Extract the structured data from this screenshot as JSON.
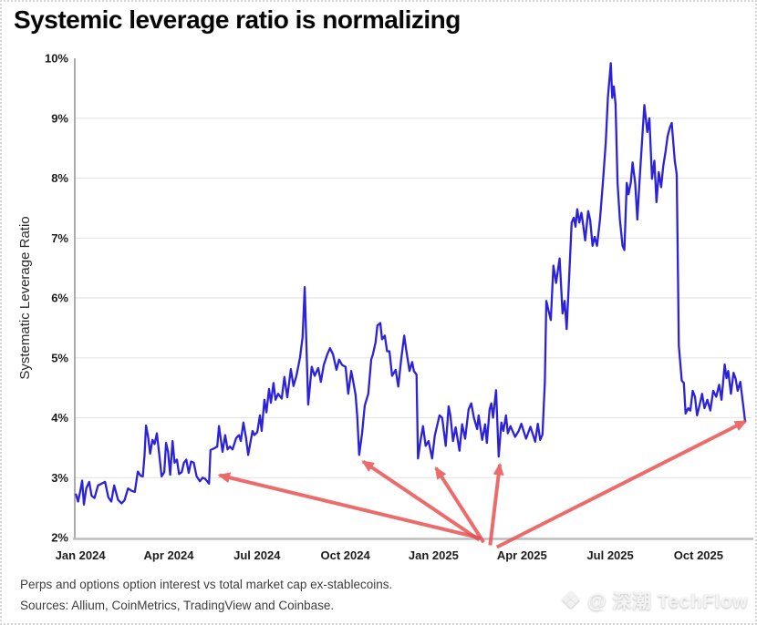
{
  "watermark": {
    "icon": "❖",
    "text": "@ 深潮 TechFlow"
  },
  "colors": {
    "line": "#2b22d9",
    "arrow": "#e84d4d",
    "grid": "#e4e4e4",
    "axis_left": "#8f8f8f",
    "axis_bottom": "#bdbdbd",
    "tick_text": "#1c1c1c",
    "title_text": "#060606"
  },
  "chart_data": {
    "type": "line",
    "title": "Systemic leverage ratio is normalizing",
    "ylabel": "Systematic Leverage Ratio",
    "xlabel": "",
    "caption": "Perps and options option interest vs total market cap ex-stablecoins.",
    "sources": "Sources: Allium, CoinMetrics, TradingView and Coinbase.",
    "grid": "horizontal",
    "legend": "none",
    "x_unit": "months since Jan 2024",
    "xlim": [
      -0.19,
      22.8
    ],
    "ylim": [
      2,
      10
    ],
    "y_ticks": [
      {
        "value": 10,
        "label": "10%"
      },
      {
        "value": 9,
        "label": "9%"
      },
      {
        "value": 8,
        "label": "8%"
      },
      {
        "value": 7,
        "label": "7%"
      },
      {
        "value": 6,
        "label": "6%"
      },
      {
        "value": 5,
        "label": "5%"
      },
      {
        "value": 4,
        "label": "4%"
      },
      {
        "value": 3,
        "label": "3%"
      },
      {
        "value": 2,
        "label": "2%"
      }
    ],
    "x_ticks": [
      {
        "t": 0,
        "label": "Jan 2024"
      },
      {
        "t": 3,
        "label": "Apr 2024"
      },
      {
        "t": 6,
        "label": "Jul 2024"
      },
      {
        "t": 9,
        "label": "Oct 2024"
      },
      {
        "t": 12,
        "label": "Jan 2025"
      },
      {
        "t": 15,
        "label": "Apr 2025"
      },
      {
        "t": 18,
        "label": "Jul 2025"
      },
      {
        "t": 21,
        "label": "Oct 2025"
      }
    ],
    "series": [
      {
        "name": "Systematic Leverage Ratio",
        "points": [
          [
            -0.15,
            2.72
          ],
          [
            -0.08,
            2.6
          ],
          [
            0.0,
            2.78
          ],
          [
            0.06,
            2.95
          ],
          [
            0.12,
            2.55
          ],
          [
            0.2,
            2.82
          ],
          [
            0.3,
            2.93
          ],
          [
            0.38,
            2.7
          ],
          [
            0.48,
            2.66
          ],
          [
            0.6,
            2.87
          ],
          [
            0.72,
            2.9
          ],
          [
            0.84,
            2.93
          ],
          [
            0.95,
            2.67
          ],
          [
            1.05,
            2.6
          ],
          [
            1.15,
            2.87
          ],
          [
            1.28,
            2.63
          ],
          [
            1.4,
            2.57
          ],
          [
            1.5,
            2.62
          ],
          [
            1.62,
            2.82
          ],
          [
            1.74,
            2.78
          ],
          [
            1.85,
            2.76
          ],
          [
            1.95,
            3.1
          ],
          [
            2.05,
            3.03
          ],
          [
            2.12,
            3.02
          ],
          [
            2.18,
            3.38
          ],
          [
            2.23,
            3.87
          ],
          [
            2.3,
            3.68
          ],
          [
            2.37,
            3.4
          ],
          [
            2.45,
            3.63
          ],
          [
            2.52,
            3.56
          ],
          [
            2.6,
            3.74
          ],
          [
            2.67,
            3.43
          ],
          [
            2.76,
            3.02
          ],
          [
            2.85,
            3.09
          ],
          [
            2.91,
            3.58
          ],
          [
            2.98,
            3.43
          ],
          [
            3.05,
            3.05
          ],
          [
            3.13,
            3.61
          ],
          [
            3.2,
            3.25
          ],
          [
            3.28,
            3.3
          ],
          [
            3.35,
            3.06
          ],
          [
            3.44,
            3.09
          ],
          [
            3.52,
            3.25
          ],
          [
            3.6,
            3.3
          ],
          [
            3.68,
            3.08
          ],
          [
            3.76,
            3.27
          ],
          [
            3.85,
            3.25
          ],
          [
            3.95,
            3.02
          ],
          [
            4.06,
            2.94
          ],
          [
            4.15,
            3.0
          ],
          [
            4.24,
            2.98
          ],
          [
            4.37,
            2.9
          ],
          [
            4.42,
            3.46
          ],
          [
            4.55,
            3.49
          ],
          [
            4.65,
            3.52
          ],
          [
            4.71,
            3.86
          ],
          [
            4.83,
            3.43
          ],
          [
            4.92,
            3.71
          ],
          [
            5.0,
            3.47
          ],
          [
            5.08,
            3.52
          ],
          [
            5.17,
            3.47
          ],
          [
            5.29,
            3.66
          ],
          [
            5.39,
            3.71
          ],
          [
            5.45,
            3.61
          ],
          [
            5.54,
            3.92
          ],
          [
            5.63,
            3.66
          ],
          [
            5.7,
            3.38
          ],
          [
            5.78,
            3.6
          ],
          [
            5.85,
            3.78
          ],
          [
            5.91,
            3.71
          ],
          [
            6.01,
            3.76
          ],
          [
            6.1,
            4.04
          ],
          [
            6.16,
            3.78
          ],
          [
            6.25,
            4.3
          ],
          [
            6.32,
            4.09
          ],
          [
            6.41,
            4.48
          ],
          [
            6.47,
            4.25
          ],
          [
            6.56,
            4.58
          ],
          [
            6.63,
            4.3
          ],
          [
            6.72,
            4.4
          ],
          [
            6.84,
            4.32
          ],
          [
            6.93,
            4.68
          ],
          [
            7.03,
            4.34
          ],
          [
            7.15,
            4.81
          ],
          [
            7.24,
            4.53
          ],
          [
            7.34,
            4.7
          ],
          [
            7.46,
            5.0
          ],
          [
            7.55,
            5.35
          ],
          [
            7.62,
            6.18
          ],
          [
            7.68,
            5.2
          ],
          [
            7.74,
            4.22
          ],
          [
            7.86,
            4.85
          ],
          [
            7.96,
            4.7
          ],
          [
            8.08,
            4.83
          ],
          [
            8.17,
            4.6
          ],
          [
            8.27,
            4.88
          ],
          [
            8.39,
            5.06
          ],
          [
            8.48,
            5.16
          ],
          [
            8.58,
            5.06
          ],
          [
            8.7,
            4.8
          ],
          [
            8.79,
            4.97
          ],
          [
            8.89,
            4.88
          ],
          [
            9.01,
            4.85
          ],
          [
            9.1,
            4.4
          ],
          [
            9.2,
            4.78
          ],
          [
            9.26,
            4.63
          ],
          [
            9.35,
            4.38
          ],
          [
            9.41,
            4.0
          ],
          [
            9.47,
            3.38
          ],
          [
            9.57,
            3.74
          ],
          [
            9.66,
            4.2
          ],
          [
            9.78,
            4.4
          ],
          [
            9.88,
            4.97
          ],
          [
            9.94,
            5.06
          ],
          [
            10.03,
            5.26
          ],
          [
            10.09,
            5.54
          ],
          [
            10.19,
            5.58
          ],
          [
            10.25,
            5.31
          ],
          [
            10.34,
            5.37
          ],
          [
            10.42,
            5.11
          ],
          [
            10.5,
            5.11
          ],
          [
            10.59,
            4.7
          ],
          [
            10.71,
            4.8
          ],
          [
            10.8,
            4.52
          ],
          [
            10.9,
            4.98
          ],
          [
            11.0,
            5.37
          ],
          [
            11.06,
            5.16
          ],
          [
            11.18,
            4.78
          ],
          [
            11.27,
            4.93
          ],
          [
            11.33,
            4.78
          ],
          [
            11.42,
            4.72
          ],
          [
            11.47,
            3.32
          ],
          [
            11.55,
            3.6
          ],
          [
            11.64,
            3.86
          ],
          [
            11.73,
            3.53
          ],
          [
            11.83,
            3.61
          ],
          [
            11.95,
            3.32
          ],
          [
            12.04,
            3.7
          ],
          [
            12.2,
            4.04
          ],
          [
            12.29,
            4.0
          ],
          [
            12.41,
            3.53
          ],
          [
            12.51,
            4.19
          ],
          [
            12.57,
            4.04
          ],
          [
            12.66,
            3.61
          ],
          [
            12.75,
            3.84
          ],
          [
            12.88,
            3.45
          ],
          [
            12.97,
            3.89
          ],
          [
            13.07,
            3.65
          ],
          [
            13.19,
            4.14
          ],
          [
            13.28,
            4.24
          ],
          [
            13.37,
            4.0
          ],
          [
            13.48,
            3.81
          ],
          [
            13.53,
            4.04
          ],
          [
            13.65,
            3.63
          ],
          [
            13.75,
            3.89
          ],
          [
            13.81,
            3.58
          ],
          [
            13.9,
            4.14
          ],
          [
            13.96,
            4.24
          ],
          [
            14.02,
            4.0
          ],
          [
            14.12,
            4.46
          ],
          [
            14.21,
            3.35
          ],
          [
            14.3,
            3.92
          ],
          [
            14.37,
            3.78
          ],
          [
            14.46,
            4.04
          ],
          [
            14.52,
            3.74
          ],
          [
            14.61,
            3.86
          ],
          [
            14.77,
            3.68
          ],
          [
            14.89,
            3.78
          ],
          [
            14.98,
            3.9
          ],
          [
            15.14,
            3.65
          ],
          [
            15.29,
            3.85
          ],
          [
            15.45,
            3.6
          ],
          [
            15.54,
            3.9
          ],
          [
            15.62,
            3.63
          ],
          [
            15.7,
            3.72
          ],
          [
            15.78,
            4.6
          ],
          [
            15.83,
            5.95
          ],
          [
            15.9,
            5.8
          ],
          [
            15.98,
            5.63
          ],
          [
            16.07,
            6.54
          ],
          [
            16.16,
            6.25
          ],
          [
            16.28,
            6.66
          ],
          [
            16.38,
            5.74
          ],
          [
            16.45,
            5.95
          ],
          [
            16.52,
            5.48
          ],
          [
            16.6,
            6.3
          ],
          [
            16.69,
            7.26
          ],
          [
            16.76,
            7.34
          ],
          [
            16.82,
            7.19
          ],
          [
            16.88,
            7.48
          ],
          [
            16.95,
            7.26
          ],
          [
            17.02,
            7.42
          ],
          [
            17.08,
            7.22
          ],
          [
            17.15,
            6.96
          ],
          [
            17.25,
            7.45
          ],
          [
            17.32,
            7.3
          ],
          [
            17.4,
            6.87
          ],
          [
            17.47,
            7.02
          ],
          [
            17.55,
            6.87
          ],
          [
            17.65,
            7.3
          ],
          [
            17.75,
            7.92
          ],
          [
            17.85,
            8.6
          ],
          [
            17.92,
            9.34
          ],
          [
            18.02,
            9.92
          ],
          [
            18.07,
            9.34
          ],
          [
            18.12,
            9.53
          ],
          [
            18.18,
            9.24
          ],
          [
            18.25,
            7.92
          ],
          [
            18.33,
            7.3
          ],
          [
            18.42,
            6.87
          ],
          [
            18.48,
            6.8
          ],
          [
            18.56,
            7.92
          ],
          [
            18.62,
            7.73
          ],
          [
            18.7,
            7.93
          ],
          [
            18.76,
            8.26
          ],
          [
            18.85,
            7.91
          ],
          [
            18.92,
            7.31
          ],
          [
            19.0,
            8.0
          ],
          [
            19.08,
            8.6
          ],
          [
            19.16,
            9.22
          ],
          [
            19.26,
            8.77
          ],
          [
            19.33,
            9.0
          ],
          [
            19.42,
            7.99
          ],
          [
            19.5,
            8.29
          ],
          [
            19.57,
            7.6
          ],
          [
            19.65,
            8.1
          ],
          [
            19.73,
            7.85
          ],
          [
            19.8,
            8.2
          ],
          [
            19.88,
            8.45
          ],
          [
            19.95,
            8.7
          ],
          [
            20.03,
            8.85
          ],
          [
            20.09,
            8.92
          ],
          [
            20.19,
            8.3
          ],
          [
            20.26,
            8.06
          ],
          [
            20.33,
            5.2
          ],
          [
            20.43,
            4.62
          ],
          [
            20.5,
            4.58
          ],
          [
            20.56,
            4.07
          ],
          [
            20.65,
            4.16
          ],
          [
            20.72,
            4.12
          ],
          [
            20.8,
            4.45
          ],
          [
            20.88,
            4.35
          ],
          [
            20.95,
            4.04
          ],
          [
            21.04,
            4.22
          ],
          [
            21.12,
            4.4
          ],
          [
            21.2,
            4.16
          ],
          [
            21.3,
            4.3
          ],
          [
            21.4,
            4.12
          ],
          [
            21.5,
            4.45
          ],
          [
            21.6,
            4.35
          ],
          [
            21.7,
            4.55
          ],
          [
            21.78,
            4.3
          ],
          [
            21.89,
            4.89
          ],
          [
            21.95,
            4.66
          ],
          [
            22.01,
            4.78
          ],
          [
            22.1,
            4.4
          ],
          [
            22.19,
            4.75
          ],
          [
            22.26,
            4.65
          ],
          [
            22.33,
            4.45
          ],
          [
            22.42,
            4.6
          ],
          [
            22.5,
            4.28
          ],
          [
            22.58,
            3.95
          ]
        ]
      }
    ],
    "annotations": {
      "arrows": [
        {
          "from": [
            13.6,
            1.99
          ],
          "to": [
            4.72,
            3.04
          ]
        },
        {
          "from": [
            13.55,
            1.96
          ],
          "to": [
            9.6,
            3.27
          ]
        },
        {
          "from": [
            13.7,
            1.92
          ],
          "to": [
            12.08,
            3.16
          ]
        },
        {
          "from": [
            13.92,
            1.87
          ],
          "to": [
            14.25,
            3.22
          ]
        },
        {
          "from": [
            14.15,
            1.84
          ],
          "to": [
            22.6,
            3.94
          ]
        }
      ]
    }
  }
}
